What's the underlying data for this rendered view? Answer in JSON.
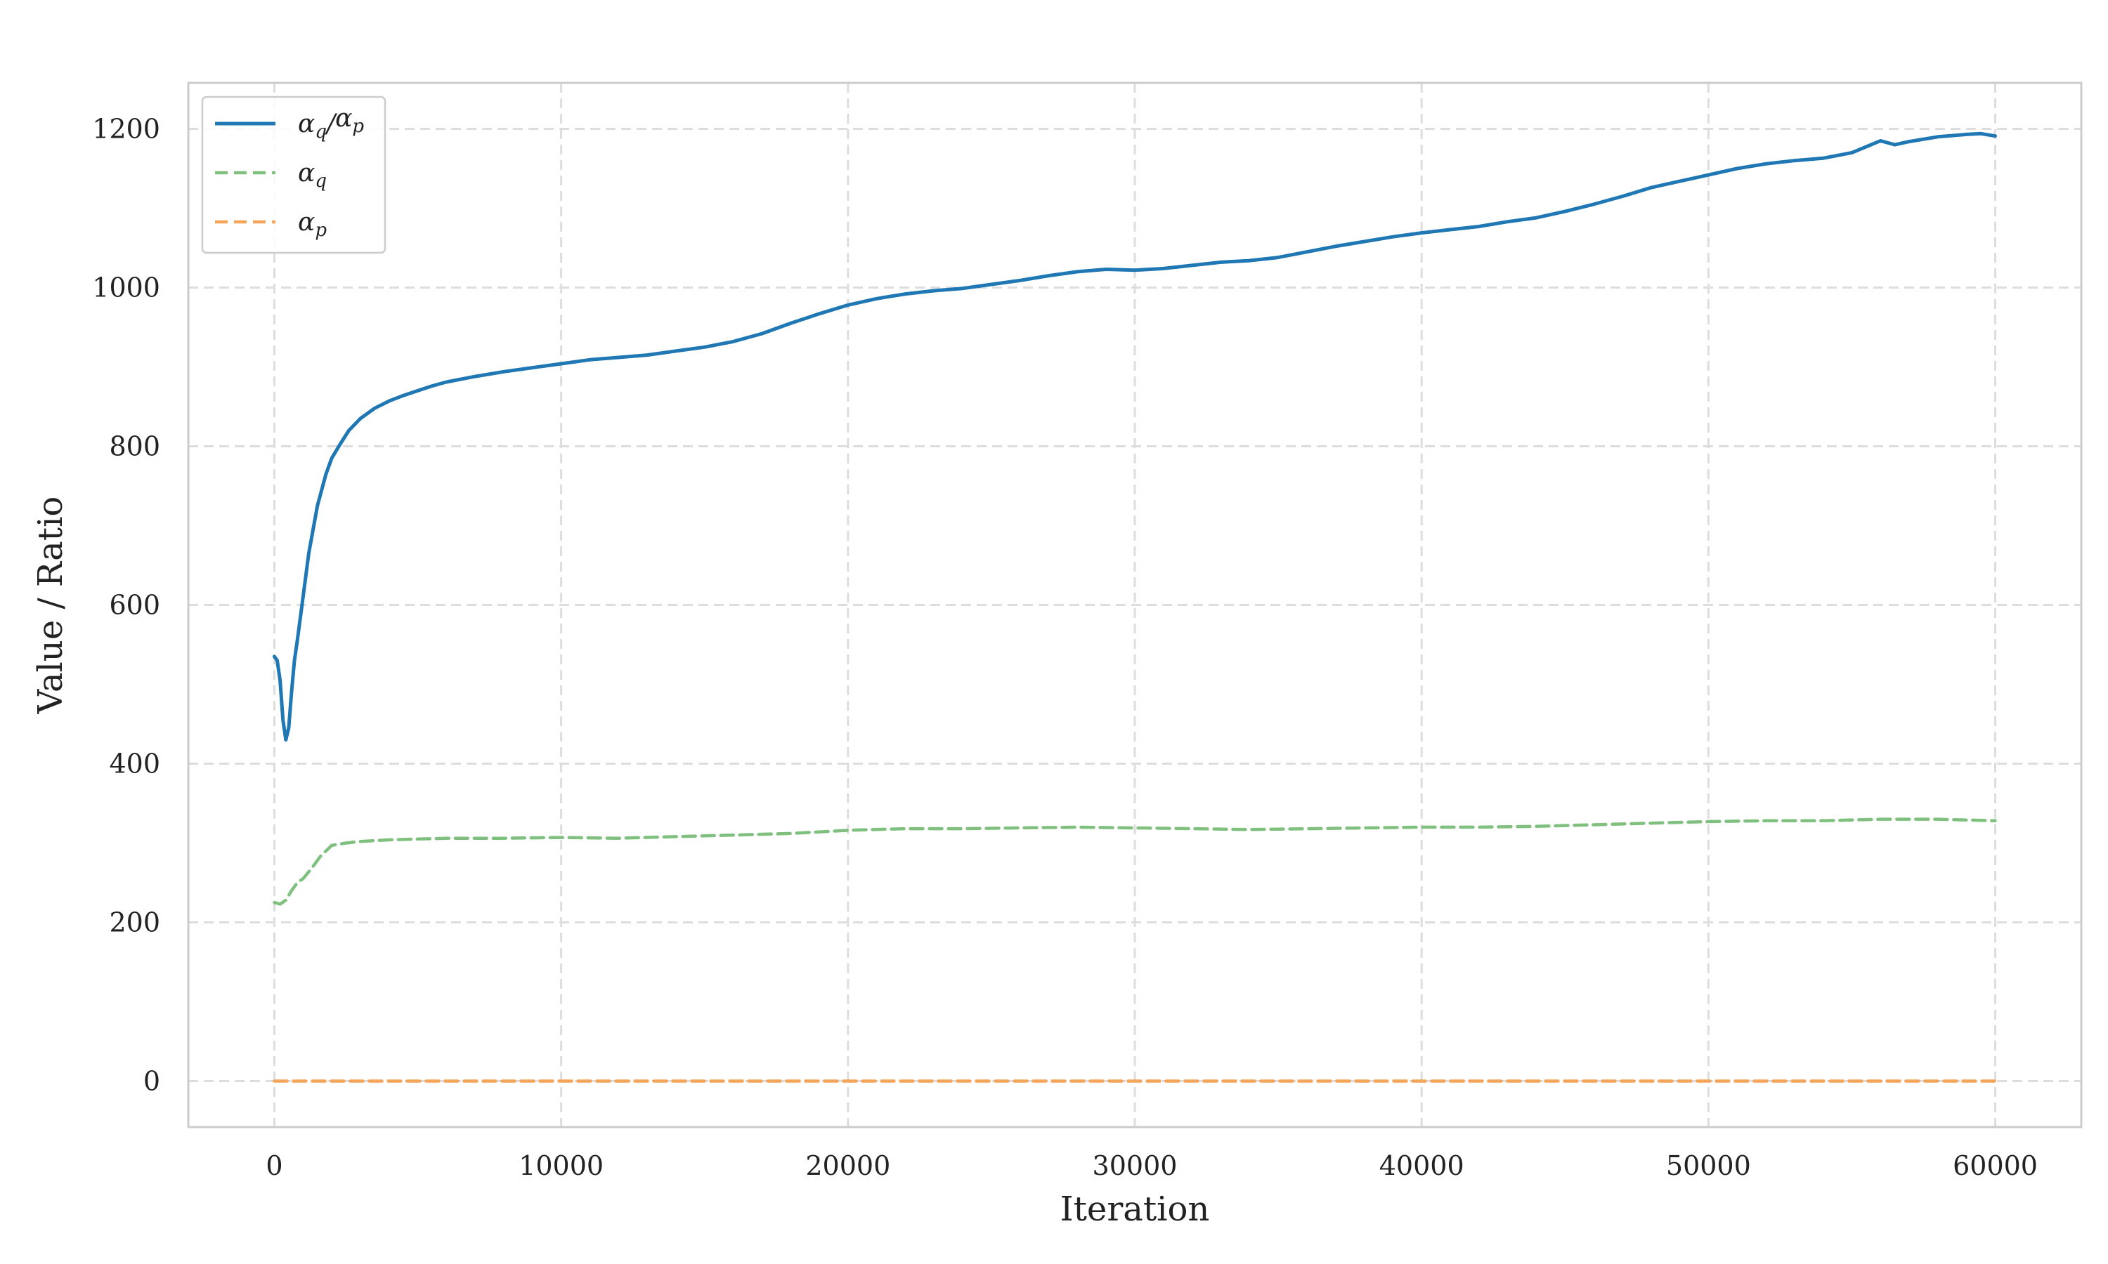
{
  "chart_data": {
    "type": "line",
    "title": "",
    "xlabel": "Iteration",
    "ylabel": "Value / Ratio",
    "xlim": [
      -3000,
      63000
    ],
    "ylim": [
      -58,
      1258
    ],
    "xticks": [
      0,
      10000,
      20000,
      30000,
      40000,
      50000,
      60000
    ],
    "yticks": [
      0,
      200,
      400,
      600,
      800,
      1000,
      1200
    ],
    "grid": true,
    "legend": "top-left",
    "series": [
      {
        "name": "αq/αp",
        "name_base": "α",
        "name_sub": "q",
        "name_sep": "/",
        "name_base2": "α",
        "name_sub2": "p",
        "color": "#1f77b4",
        "style": "solid",
        "x": [
          0,
          100,
          200,
          300,
          400,
          500,
          600,
          700,
          800,
          1000,
          1200,
          1500,
          1800,
          2000,
          2300,
          2600,
          3000,
          3500,
          4000,
          4500,
          5000,
          5500,
          6000,
          7000,
          8000,
          9000,
          10000,
          11000,
          12000,
          13000,
          14000,
          15000,
          16000,
          17000,
          18000,
          19000,
          20000,
          21000,
          22000,
          23000,
          24000,
          25000,
          26000,
          27000,
          28000,
          29000,
          30000,
          31000,
          32000,
          33000,
          34000,
          35000,
          36000,
          37000,
          38000,
          39000,
          40000,
          41000,
          42000,
          43000,
          44000,
          45000,
          46000,
          47000,
          48000,
          49000,
          50000,
          51000,
          52000,
          53000,
          54000,
          55000,
          56000,
          56500,
          57000,
          58000,
          59000,
          59500,
          60000
        ],
        "y": [
          535,
          530,
          505,
          455,
          430,
          445,
          490,
          530,
          555,
          610,
          665,
          725,
          765,
          785,
          803,
          820,
          835,
          848,
          857,
          864,
          870,
          876,
          881,
          888,
          894,
          899,
          904,
          909,
          912,
          915,
          920,
          925,
          932,
          942,
          955,
          967,
          978,
          986,
          992,
          996,
          999,
          1004,
          1009,
          1015,
          1020,
          1023,
          1022,
          1024,
          1028,
          1032,
          1034,
          1038,
          1045,
          1052,
          1058,
          1064,
          1069,
          1073,
          1077,
          1083,
          1088,
          1096,
          1105,
          1115,
          1126,
          1134,
          1142,
          1150,
          1156,
          1160,
          1163,
          1170,
          1185,
          1180,
          1184,
          1190,
          1193,
          1194,
          1191
        ]
      },
      {
        "name": "αq",
        "name_base": "α",
        "name_sub": "q",
        "color": "#7fc07f",
        "style": "dashed",
        "x": [
          0,
          200,
          400,
          600,
          800,
          1000,
          1300,
          1600,
          2000,
          2500,
          3000,
          4000,
          5000,
          6000,
          8000,
          10000,
          12000,
          14000,
          16000,
          18000,
          20000,
          22000,
          24000,
          26000,
          28000,
          30000,
          32000,
          34000,
          36000,
          38000,
          40000,
          42000,
          44000,
          46000,
          48000,
          50000,
          52000,
          54000,
          56000,
          58000,
          60000
        ],
        "y": [
          225,
          223,
          228,
          240,
          250,
          255,
          268,
          283,
          297,
          300,
          302,
          304,
          305,
          306,
          306,
          307,
          306,
          308,
          310,
          312,
          316,
          318,
          318,
          319,
          320,
          319,
          318,
          317,
          318,
          319,
          320,
          320,
          321,
          323,
          325,
          327,
          328,
          328,
          330,
          330,
          328
        ]
      },
      {
        "name": "αp",
        "name_base": "α",
        "name_sub": "p",
        "color": "#f5a55a",
        "style": "dashed",
        "x": [
          0,
          60000
        ],
        "y": [
          0,
          0
        ]
      }
    ]
  }
}
